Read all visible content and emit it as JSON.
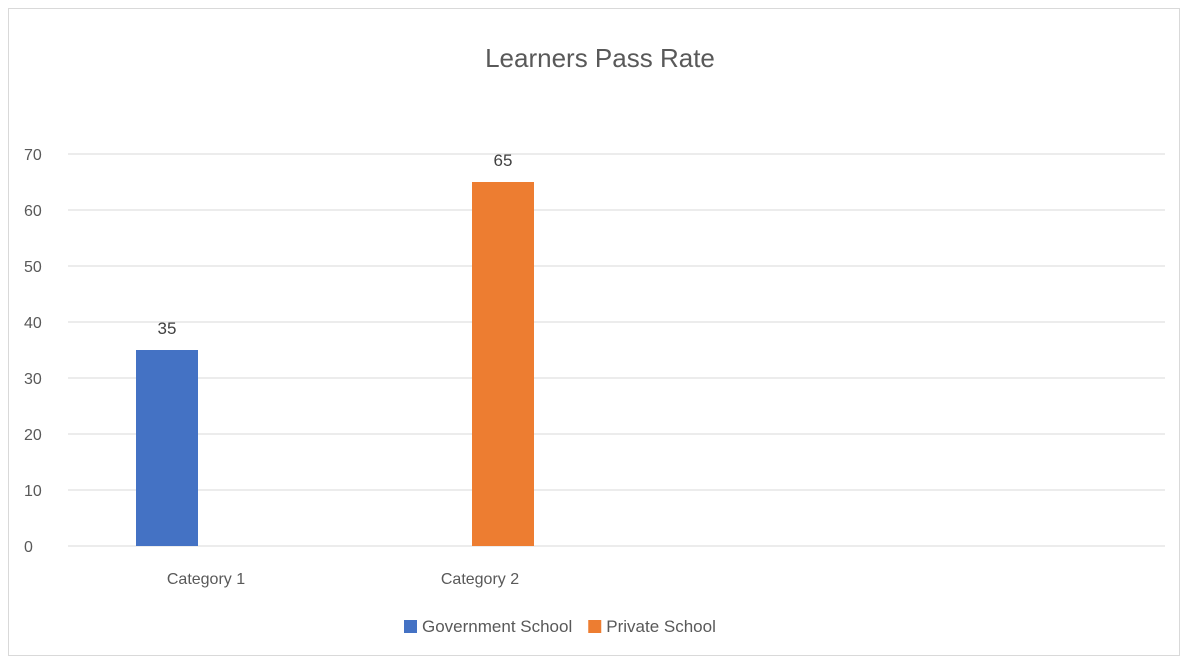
{
  "chart_data": {
    "type": "bar",
    "title": "Learners Pass Rate",
    "categories": [
      "Category 1",
      "Category 2"
    ],
    "series": [
      {
        "name": "Government School",
        "color": "#4472c4",
        "values": [
          35,
          null
        ]
      },
      {
        "name": "Private School",
        "color": "#ed7d31",
        "values": [
          null,
          65
        ]
      }
    ],
    "y_ticks": [
      0,
      10,
      20,
      30,
      40,
      50,
      60,
      70
    ],
    "ylim": [
      0,
      70
    ],
    "xlabel": "",
    "ylabel": "",
    "grid": true,
    "legend_position": "bottom",
    "data_labels": true
  }
}
